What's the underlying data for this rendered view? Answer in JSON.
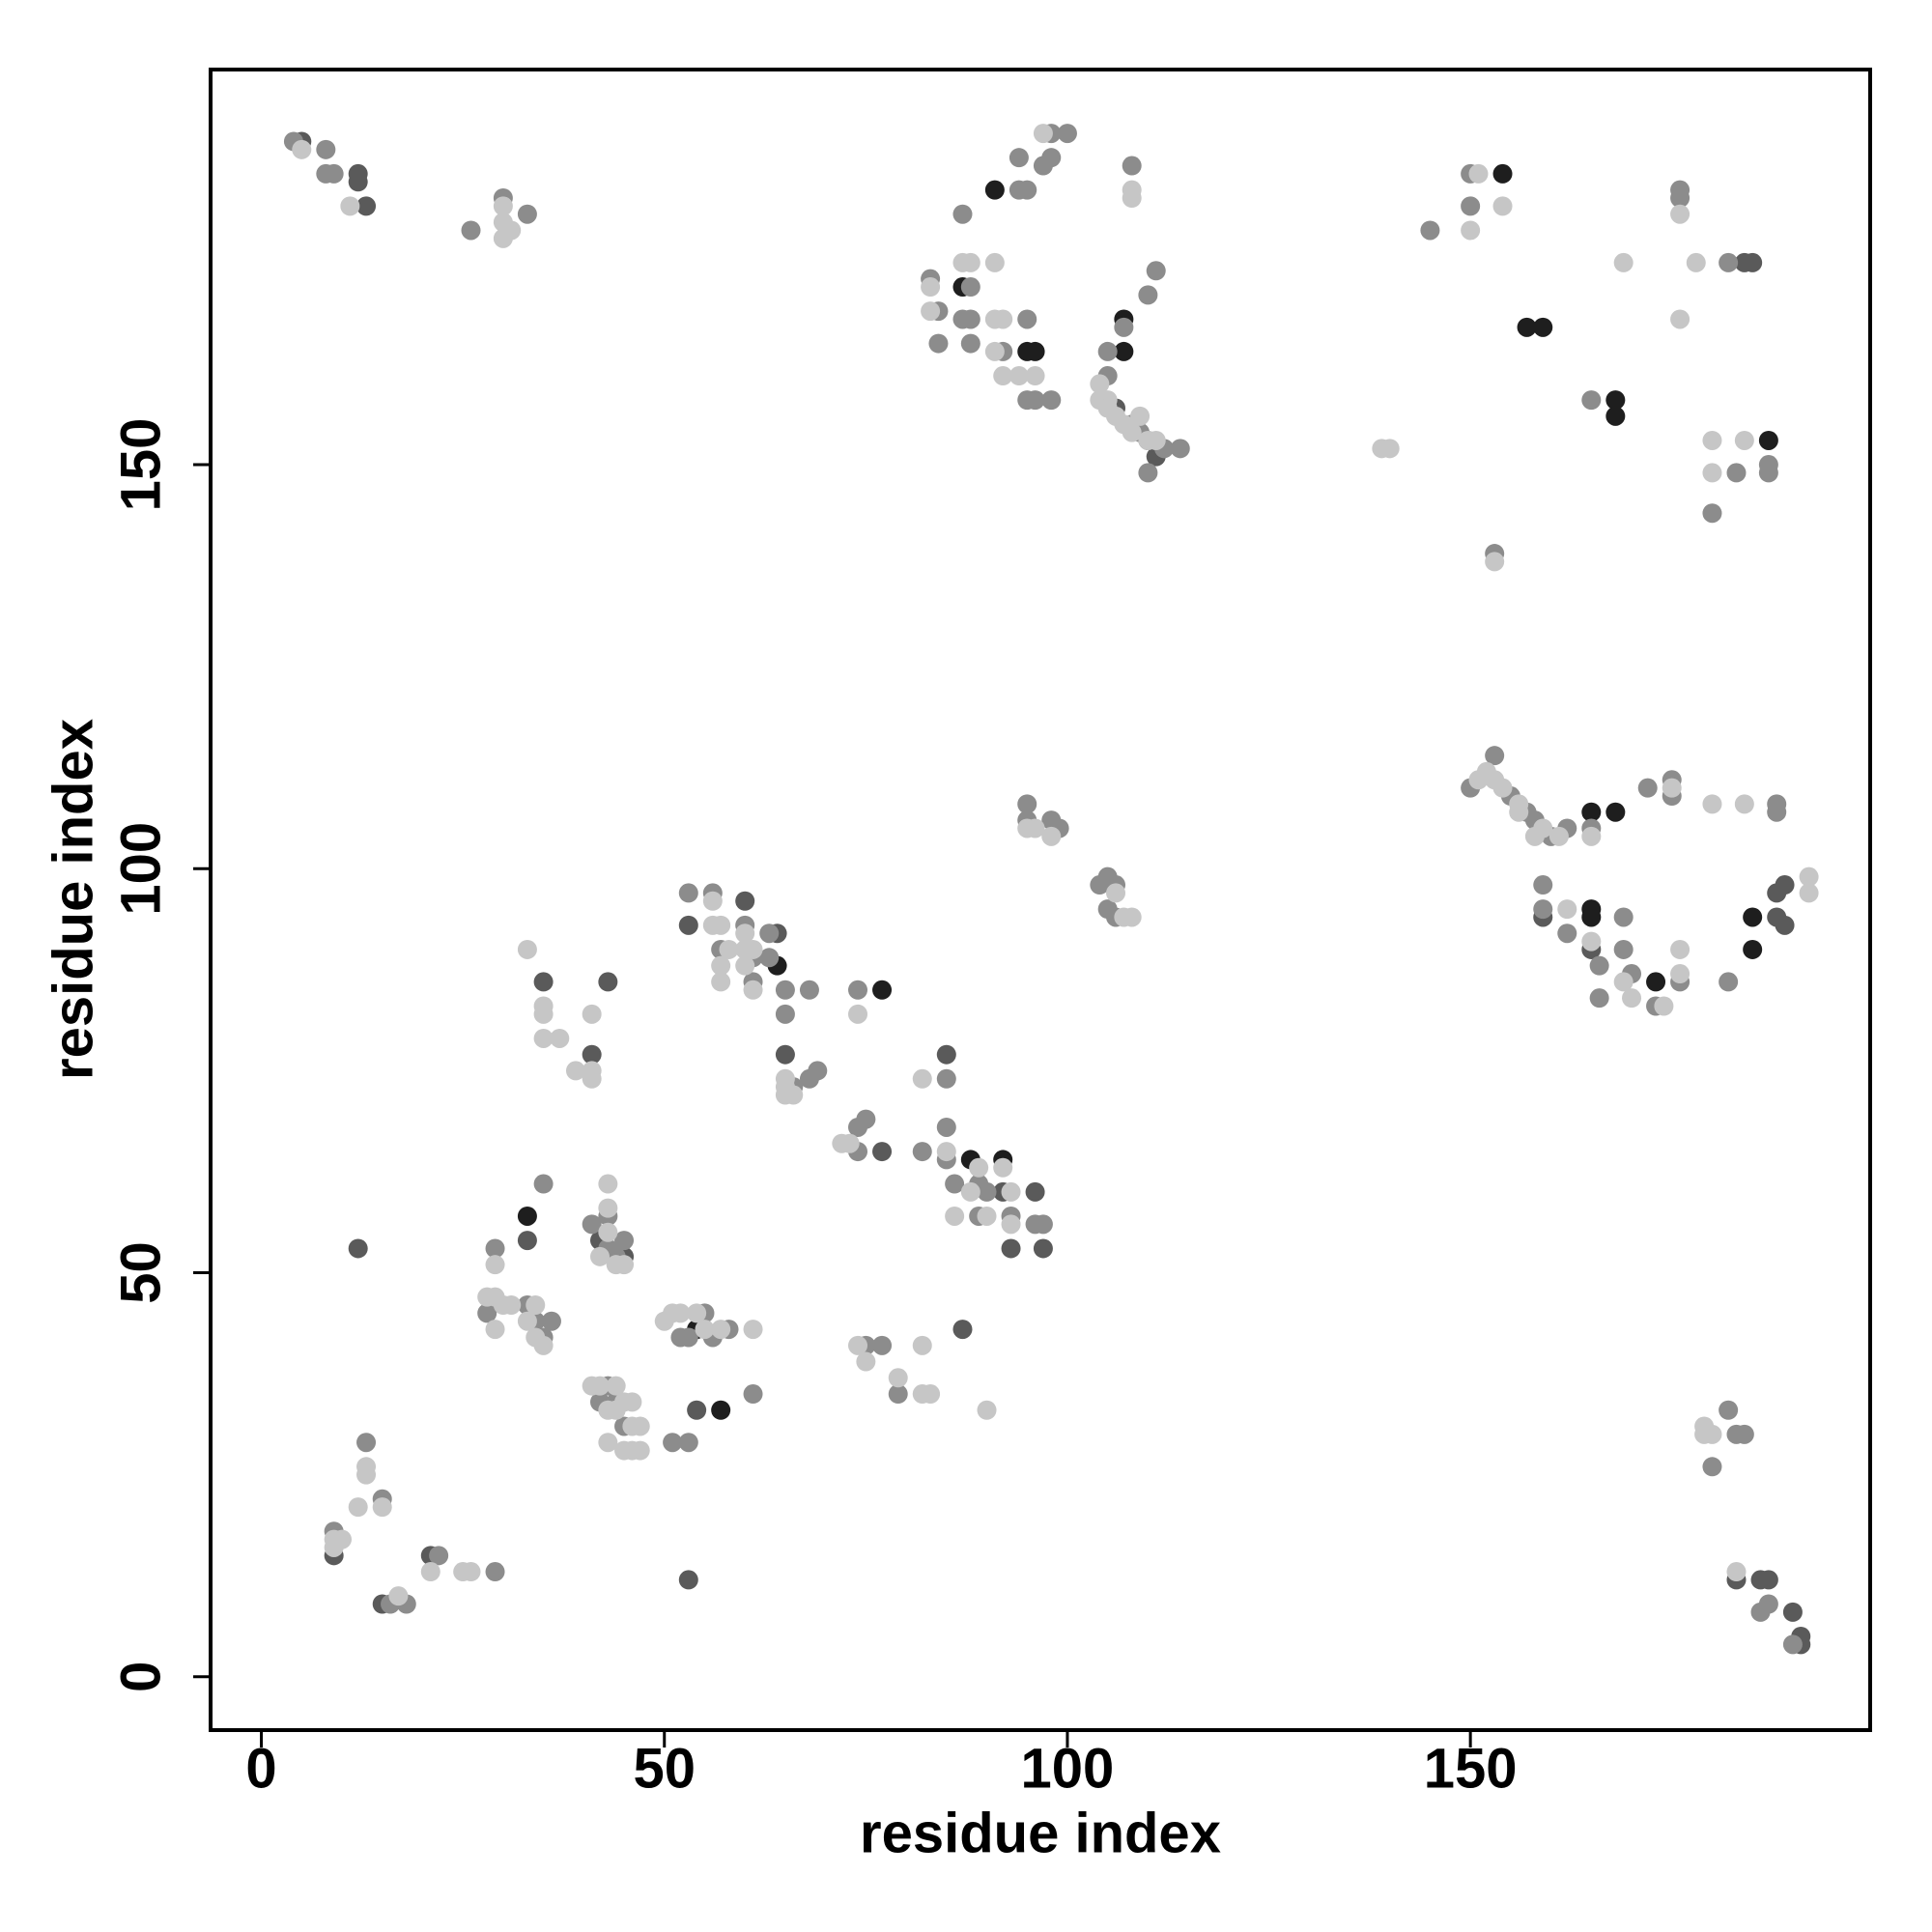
{
  "chart_data": {
    "type": "scatter",
    "xlabel": "residue index",
    "ylabel": "residue index",
    "xlim": [
      -6.3,
      199.6
    ],
    "ylim": [
      -6.6,
      198.9
    ],
    "xticks": [
      0,
      50,
      100,
      150
    ],
    "yticks": [
      0,
      50,
      100,
      150
    ],
    "series": [
      {
        "color": "#1e1e1e",
        "x": [
          91,
          87,
          107,
          95,
          96,
          107,
          157,
          159,
          168,
          168,
          165,
          168,
          165,
          165,
          173,
          185,
          185,
          64,
          77,
          88,
          92,
          54,
          57,
          33,
          154,
          187
        ],
        "y": [
          184,
          172,
          168,
          164,
          164,
          164,
          167,
          167,
          158,
          156,
          107,
          107,
          95,
          94,
          86,
          90,
          94,
          88,
          85,
          64,
          64,
          43,
          33,
          57,
          186,
          153
        ]
      },
      {
        "color": "#5a5a5a",
        "x": [
          12,
          12,
          13,
          5,
          15,
          35,
          43,
          65,
          85,
          53,
          64,
          60,
          87,
          54,
          53,
          12,
          21,
          9,
          183,
          186,
          187,
          191,
          191,
          190,
          188,
          189,
          188,
          184,
          185,
          111,
          110,
          106,
          41,
          42,
          45,
          77,
          97,
          93,
          96,
          33,
          92,
          165,
          159,
          189
        ],
        "y": [
          186,
          185,
          182,
          190,
          9,
          86,
          86,
          77,
          77,
          93,
          92,
          96,
          43,
          33,
          12,
          53,
          15,
          15,
          12,
          12,
          12,
          4,
          5,
          8,
          94,
          93,
          97,
          175,
          175,
          151,
          153,
          157,
          77,
          54,
          52,
          65,
          53,
          53,
          60,
          54,
          60,
          90,
          94,
          98
        ]
      },
      {
        "color": "#8c8c8c",
        "x": [
          4,
          8,
          8,
          9,
          26,
          30,
          33,
          94,
          95,
          94,
          87,
          83,
          88,
          84,
          87,
          88,
          95,
          84,
          88,
          92,
          95,
          96,
          98,
          110,
          111,
          107,
          105,
          105,
          108,
          109,
          112,
          114,
          110,
          108,
          150,
          150,
          145,
          176,
          176,
          182,
          165,
          183,
          187,
          187,
          180,
          153,
          150,
          153,
          155,
          158,
          160,
          165,
          172,
          175,
          188,
          159,
          159,
          162,
          166,
          166,
          169,
          169,
          170,
          173,
          176,
          182,
          188,
          180,
          182,
          183,
          184,
          186,
          187,
          190,
          13,
          15,
          9,
          16,
          18,
          22,
          29,
          29,
          28,
          33,
          34,
          35,
          36,
          35,
          41,
          43,
          43,
          44,
          45,
          43,
          44,
          42,
          45,
          52,
          53,
          55,
          56,
          58,
          61,
          51,
          53,
          53,
          56,
          60,
          57,
          61,
          63,
          63,
          61,
          65,
          68,
          65,
          66,
          68,
          69,
          74,
          74,
          75,
          74,
          82,
          85,
          85,
          85,
          86,
          89,
          90,
          93,
          96,
          97,
          89,
          77,
          75,
          79,
          95,
          95,
          98,
          99,
          105,
          104,
          106,
          105,
          106,
          97,
          98,
          100,
          98,
          157,
          162,
          175
        ],
        "y": [
          190,
          189,
          186,
          186,
          179,
          183,
          181,
          188,
          184,
          184,
          181,
          173,
          172,
          169,
          168,
          168,
          168,
          165,
          165,
          164,
          158,
          158,
          158,
          171,
          174,
          167,
          164,
          161,
          155,
          154,
          152,
          152,
          149,
          187,
          182,
          186,
          179,
          184,
          183,
          175,
          158,
          149,
          149,
          150,
          144,
          139,
          110,
          114,
          109,
          106,
          104,
          105,
          110,
          111,
          108,
          98,
          95,
          92,
          88,
          84,
          94,
          90,
          87,
          83,
          86,
          86,
          107,
          26,
          33,
          30,
          30,
          8,
          9,
          4,
          29,
          22,
          18,
          9,
          9,
          15,
          13,
          53,
          45,
          46,
          44,
          42,
          44,
          61,
          56,
          57,
          53,
          52,
          54,
          36,
          34,
          34,
          31,
          42,
          42,
          45,
          42,
          43,
          35,
          29,
          29,
          97,
          97,
          93,
          90,
          89,
          92,
          89,
          86,
          85,
          85,
          82,
          73,
          74,
          75,
          85,
          68,
          69,
          65,
          65,
          74,
          68,
          64,
          61,
          61,
          60,
          57,
          56,
          56,
          57,
          41,
          41,
          35,
          108,
          106,
          106,
          105,
          99,
          98,
          98,
          95,
          94,
          187,
          191,
          191,
          188,
          107,
          105,
          109
        ]
      },
      {
        "color": "#c6c6c6",
        "x": [
          5,
          11,
          30,
          30,
          30,
          31,
          97,
          87,
          88,
          91,
          83,
          83,
          91,
          92,
          91,
          92,
          94,
          96,
          104,
          104,
          105,
          105,
          106,
          107,
          108,
          109,
          110,
          111,
          108,
          108,
          151,
          154,
          150,
          169,
          178,
          176,
          176,
          139,
          140,
          180,
          184,
          180,
          153,
          152,
          153,
          154,
          156,
          151,
          156,
          159,
          158,
          161,
          165,
          175,
          180,
          184,
          192,
          192,
          162,
          165,
          169,
          170,
          174,
          176,
          176,
          179,
          180,
          179,
          183,
          9,
          10,
          9,
          12,
          13,
          13,
          15,
          17,
          21,
          25,
          26,
          29,
          28,
          29,
          30,
          31,
          34,
          33,
          34,
          35,
          29,
          35,
          35,
          35,
          37,
          33,
          39,
          41,
          41,
          41,
          42,
          43,
          43,
          44,
          45,
          43,
          41,
          42,
          44,
          45,
          46,
          43,
          44,
          46,
          47,
          43,
          45,
          46,
          47,
          50,
          51,
          52,
          54,
          55,
          57,
          61,
          56,
          56,
          57,
          60,
          58,
          57,
          60,
          60,
          61,
          57,
          61,
          65,
          65,
          65,
          66,
          74,
          72,
          73,
          82,
          85,
          89,
          88,
          92,
          93,
          86,
          90,
          93,
          74,
          75,
          82,
          79,
          82,
          83,
          90,
          95,
          96,
          98,
          106,
          107,
          108
        ],
        "y": [
          189,
          182,
          182,
          180,
          178,
          179,
          191,
          175,
          175,
          175,
          172,
          169,
          168,
          168,
          164,
          161,
          161,
          161,
          160,
          158,
          158,
          157,
          156,
          155,
          154,
          156,
          153,
          153,
          184,
          183,
          186,
          182,
          179,
          175,
          175,
          181,
          168,
          152,
          152,
          153,
          153,
          149,
          138,
          112,
          111,
          110,
          108,
          111,
          107,
          105,
          104,
          104,
          104,
          110,
          108,
          108,
          99,
          97,
          95,
          91,
          86,
          84,
          83,
          90,
          87,
          31,
          30,
          30,
          13,
          17,
          17,
          16,
          21,
          26,
          25,
          21,
          10,
          13,
          13,
          13,
          51,
          47,
          47,
          46,
          46,
          46,
          44,
          42,
          41,
          43,
          83,
          82,
          79,
          79,
          90,
          75,
          75,
          74,
          82,
          52,
          61,
          58,
          51,
          51,
          55,
          36,
          36,
          36,
          34,
          34,
          33,
          33,
          31,
          31,
          29,
          28,
          28,
          28,
          44,
          45,
          45,
          45,
          43,
          43,
          43,
          96,
          93,
          93,
          92,
          90,
          88,
          90,
          88,
          90,
          86,
          85,
          74,
          73,
          72,
          72,
          82,
          66,
          66,
          74,
          65,
          63,
          60,
          63,
          60,
          57,
          57,
          56,
          41,
          39,
          41,
          37,
          35,
          35,
          33,
          105,
          105,
          104,
          97,
          94,
          94
        ]
      }
    ]
  }
}
